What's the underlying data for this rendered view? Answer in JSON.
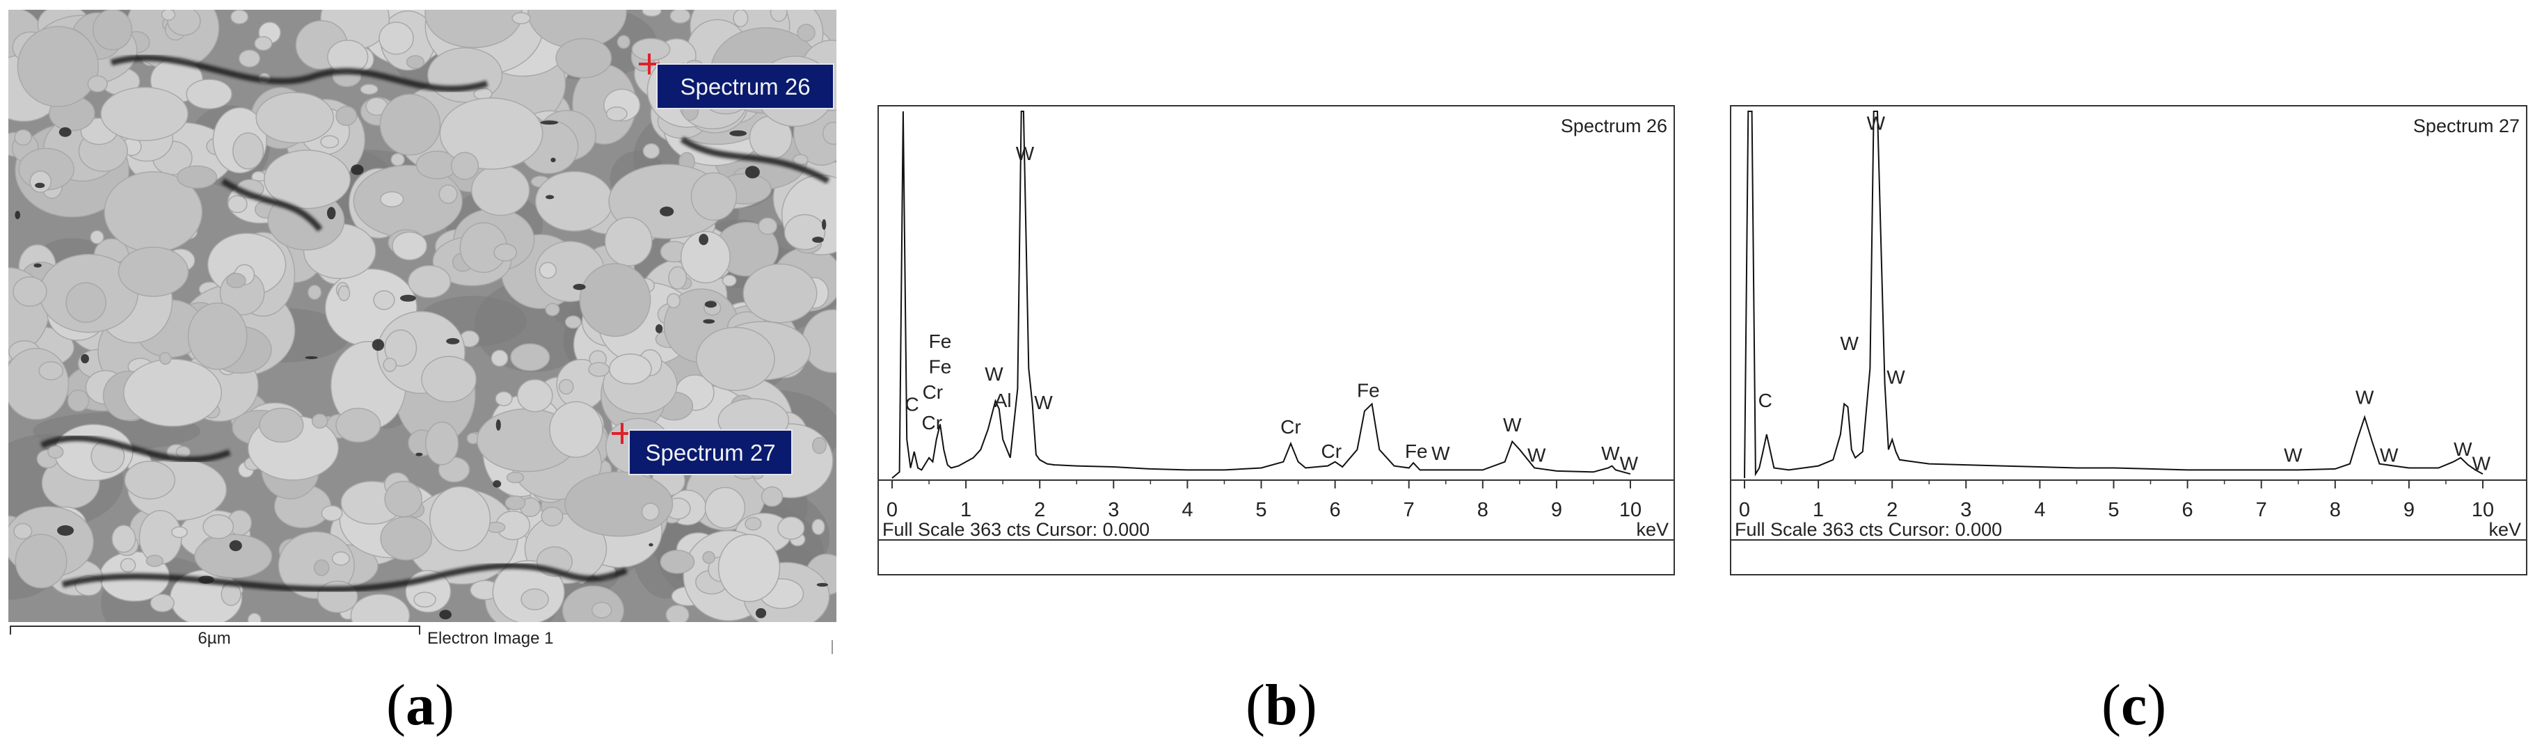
{
  "panels": {
    "a": {
      "caption_letter": "a",
      "scale_bar": "6µm",
      "image_label": "Electron Image 1",
      "markers": [
        {
          "label": "Spectrum 26"
        },
        {
          "label": "Spectrum 27"
        }
      ]
    },
    "b": {
      "caption_letter": "b"
    },
    "c": {
      "caption_letter": "c"
    }
  },
  "chart_data": [
    {
      "type": "line",
      "title": "Spectrum 26",
      "xlabel": "keV",
      "footer": "Full Scale 363 cts Cursor: 0.000",
      "xlim": [
        0,
        10
      ],
      "ylim": [
        0,
        363
      ],
      "x_ticks": [
        0,
        1,
        2,
        3,
        4,
        5,
        6,
        7,
        8,
        9,
        10
      ],
      "x": [
        0.0,
        0.1,
        0.15,
        0.2,
        0.25,
        0.3,
        0.35,
        0.4,
        0.5,
        0.55,
        0.6,
        0.65,
        0.7,
        0.75,
        0.8,
        0.9,
        1.0,
        1.1,
        1.2,
        1.3,
        1.4,
        1.45,
        1.5,
        1.6,
        1.7,
        1.75,
        1.78,
        1.85,
        1.9,
        1.95,
        2.0,
        2.1,
        2.2,
        2.5,
        3.0,
        3.5,
        4.0,
        4.5,
        5.0,
        5.3,
        5.4,
        5.5,
        5.6,
        5.9,
        6.0,
        6.1,
        6.3,
        6.4,
        6.5,
        6.6,
        6.8,
        7.0,
        7.06,
        7.15,
        7.5,
        8.0,
        8.3,
        8.4,
        8.5,
        8.7,
        9.0,
        9.5,
        9.7,
        9.75,
        9.8,
        9.9,
        10.0
      ],
      "y": [
        2,
        8,
        363,
        40,
        12,
        28,
        12,
        10,
        22,
        18,
        40,
        55,
        30,
        15,
        12,
        14,
        18,
        22,
        30,
        50,
        78,
        70,
        40,
        22,
        90,
        363,
        363,
        110,
        75,
        25,
        20,
        16,
        15,
        14,
        13,
        11,
        10,
        10,
        12,
        18,
        36,
        18,
        12,
        14,
        18,
        13,
        30,
        68,
        75,
        30,
        14,
        12,
        17,
        10,
        10,
        10,
        18,
        38,
        30,
        12,
        9,
        8,
        12,
        14,
        10,
        8,
        6
      ],
      "peak_labels": [
        {
          "text": "C",
          "x": 0.27,
          "y": 68
        },
        {
          "text": "Cr",
          "x": 0.54,
          "y": 50
        },
        {
          "text": "Cr",
          "x": 0.55,
          "y": 80
        },
        {
          "text": "Fe",
          "x": 0.65,
          "y": 105
        },
        {
          "text": "Fe",
          "x": 0.65,
          "y": 130
        },
        {
          "text": "W",
          "x": 1.38,
          "y": 98
        },
        {
          "text": "Al",
          "x": 1.5,
          "y": 72
        },
        {
          "text": "W",
          "x": 1.8,
          "y": 315
        },
        {
          "text": "W",
          "x": 2.05,
          "y": 70
        },
        {
          "text": "Cr",
          "x": 5.4,
          "y": 46
        },
        {
          "text": "Cr",
          "x": 5.95,
          "y": 22
        },
        {
          "text": "Fe",
          "x": 6.45,
          "y": 82
        },
        {
          "text": "Fe",
          "x": 7.1,
          "y": 22
        },
        {
          "text": "W",
          "x": 7.43,
          "y": 20
        },
        {
          "text": "W",
          "x": 8.4,
          "y": 48
        },
        {
          "text": "W",
          "x": 8.73,
          "y": 18
        },
        {
          "text": "W",
          "x": 9.73,
          "y": 20
        },
        {
          "text": "W",
          "x": 9.98,
          "y": 10
        }
      ]
    },
    {
      "type": "line",
      "title": "Spectrum 27",
      "xlabel": "keV",
      "footer": "Full Scale 363 cts Cursor: 0.000",
      "xlim": [
        0,
        10
      ],
      "ylim": [
        0,
        363
      ],
      "x_ticks": [
        0,
        1,
        2,
        3,
        4,
        5,
        6,
        7,
        8,
        9,
        10
      ],
      "x": [
        0.0,
        0.05,
        0.1,
        0.15,
        0.2,
        0.25,
        0.3,
        0.4,
        0.6,
        0.8,
        1.0,
        1.2,
        1.3,
        1.35,
        1.4,
        1.45,
        1.5,
        1.6,
        1.7,
        1.75,
        1.8,
        1.9,
        1.95,
        2.0,
        2.05,
        2.1,
        2.3,
        2.5,
        3.0,
        3.5,
        4.0,
        4.5,
        5.0,
        5.5,
        6.0,
        6.5,
        7.0,
        7.5,
        8.0,
        8.2,
        8.3,
        8.4,
        8.5,
        8.6,
        8.8,
        9.0,
        9.4,
        9.6,
        9.7,
        9.8,
        9.9,
        10.0
      ],
      "y": [
        2,
        363,
        363,
        6,
        12,
        28,
        45,
        12,
        10,
        12,
        14,
        20,
        45,
        75,
        72,
        30,
        22,
        28,
        110,
        363,
        363,
        95,
        30,
        40,
        28,
        20,
        18,
        16,
        15,
        14,
        13,
        12,
        12,
        11,
        10,
        10,
        10,
        10,
        11,
        16,
        40,
        62,
        38,
        16,
        14,
        12,
        12,
        18,
        22,
        15,
        10,
        6
      ],
      "peak_labels": [
        {
          "text": "C",
          "x": 0.28,
          "y": 72
        },
        {
          "text": "W",
          "x": 1.42,
          "y": 128
        },
        {
          "text": "W",
          "x": 1.78,
          "y": 345
        },
        {
          "text": "W",
          "x": 2.05,
          "y": 95
        },
        {
          "text": "W",
          "x": 7.43,
          "y": 18
        },
        {
          "text": "W",
          "x": 8.4,
          "y": 75
        },
        {
          "text": "W",
          "x": 8.73,
          "y": 18
        },
        {
          "text": "W",
          "x": 9.73,
          "y": 24
        },
        {
          "text": "W",
          "x": 9.98,
          "y": 10
        }
      ]
    }
  ]
}
